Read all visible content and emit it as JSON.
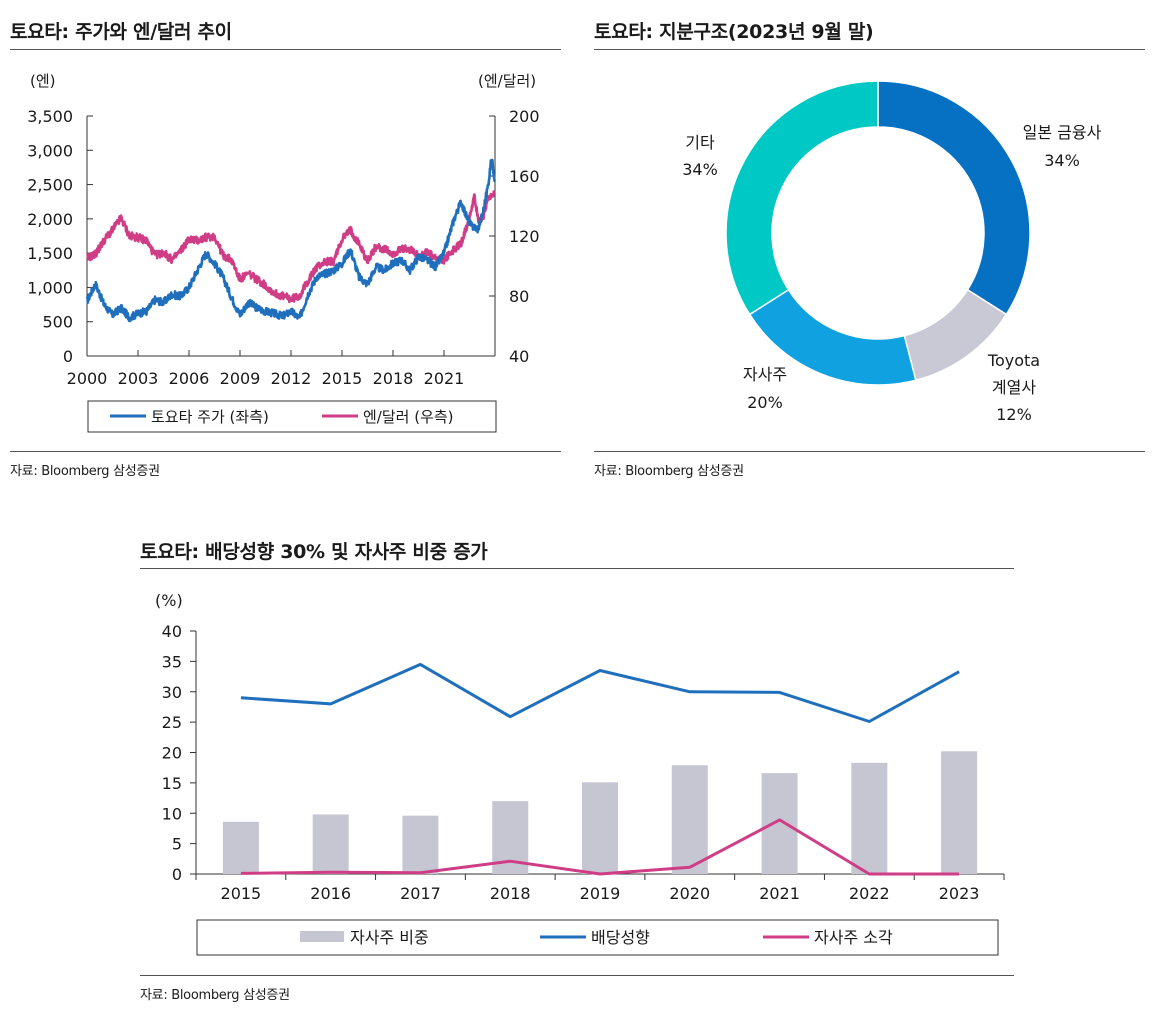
{
  "stock_fx": {
    "title": "토요타: 주가와 엔/달러 추이",
    "source": "자료: Bloomberg 삼성증권",
    "left_unit": "(엔)",
    "right_unit": "(엔/달러)",
    "legend": [
      "토요타 주가 (좌측)",
      "엔/달러 (우측)"
    ]
  },
  "ownership": {
    "title": "토요타: 지분구조(2023년 9월 말)",
    "source": "자료: Bloomberg 삼성증권",
    "labels": {
      "japan_fin": [
        "일본 금융사",
        "34%"
      ],
      "toyota_aff": [
        "Toyota",
        "계열사",
        "12%"
      ],
      "treasury": [
        "자사주",
        "20%"
      ],
      "other": [
        "기타",
        "34%"
      ]
    }
  },
  "payout": {
    "title": "토요타: 배당성향 30% 및 자사주 비중 증가",
    "source": "자료: Bloomberg 삼성증권",
    "unit": "(%)",
    "legend": [
      "자사주 비중",
      "배당성향",
      "자사주 소각"
    ]
  },
  "chart_data": [
    {
      "type": "line",
      "title": "토요타: 주가와 엔/달러 추이",
      "x_ticks": [
        "2000",
        "2003",
        "2006",
        "2009",
        "2012",
        "2015",
        "2018",
        "2021"
      ],
      "y_left": {
        "label": "(엔)",
        "range": [
          0,
          3500
        ],
        "ticks": [
          0,
          500,
          1000,
          1500,
          2000,
          2500,
          3000,
          3500
        ]
      },
      "y_right": {
        "label": "(엔/달러)",
        "range": [
          40,
          200
        ],
        "ticks": [
          40,
          80,
          120,
          160,
          200
        ]
      },
      "colors": {
        "stock": "#1f6fbd",
        "fx": "#cf3d86"
      },
      "series": [
        {
          "name": "토요타 주가 (좌측)",
          "axis": "left",
          "x": [
            2000.0,
            2000.5,
            2001.0,
            2001.5,
            2002.0,
            2002.5,
            2003.0,
            2003.5,
            2004.0,
            2004.5,
            2005.0,
            2005.5,
            2006.0,
            2006.5,
            2007.0,
            2007.5,
            2008.0,
            2008.5,
            2009.0,
            2009.5,
            2010.0,
            2010.5,
            2011.0,
            2011.5,
            2012.0,
            2012.5,
            2013.0,
            2013.5,
            2014.0,
            2014.5,
            2015.0,
            2015.5,
            2016.0,
            2016.5,
            2017.0,
            2017.5,
            2018.0,
            2018.5,
            2019.0,
            2019.5,
            2020.0,
            2020.5,
            2021.0,
            2021.3,
            2021.6,
            2022.0,
            2022.3,
            2022.6,
            2023.0,
            2023.3,
            2023.6,
            2023.8,
            2024.0
          ],
          "values": [
            800,
            1050,
            750,
            600,
            700,
            560,
            620,
            650,
            820,
            780,
            900,
            870,
            1000,
            1250,
            1500,
            1350,
            1150,
            850,
            600,
            780,
            700,
            650,
            620,
            580,
            650,
            550,
            900,
            1150,
            1200,
            1250,
            1350,
            1550,
            1150,
            1050,
            1300,
            1250,
            1350,
            1400,
            1250,
            1450,
            1400,
            1300,
            1500,
            1750,
            2000,
            2250,
            2050,
            1900,
            1850,
            2100,
            2500,
            2900,
            2550
          ]
        },
        {
          "name": "엔/달러 (우측)",
          "axis": "right",
          "x": [
            2000.0,
            2000.5,
            2001.0,
            2001.5,
            2002.0,
            2002.5,
            2003.0,
            2003.5,
            2004.0,
            2004.5,
            2005.0,
            2005.5,
            2006.0,
            2006.5,
            2007.0,
            2007.5,
            2008.0,
            2008.5,
            2009.0,
            2009.5,
            2010.0,
            2010.5,
            2011.0,
            2011.5,
            2012.0,
            2012.5,
            2013.0,
            2013.5,
            2014.0,
            2014.5,
            2015.0,
            2015.5,
            2016.0,
            2016.5,
            2017.0,
            2017.5,
            2018.0,
            2018.5,
            2019.0,
            2019.5,
            2020.0,
            2020.5,
            2021.0,
            2021.5,
            2022.0,
            2022.3,
            2022.6,
            2022.8,
            2023.0,
            2023.3,
            2023.6,
            2024.0
          ],
          "values": [
            105,
            108,
            117,
            124,
            132,
            120,
            119,
            117,
            107,
            109,
            104,
            110,
            118,
            117,
            119,
            120,
            107,
            104,
            91,
            95,
            91,
            87,
            82,
            80,
            78,
            80,
            90,
            99,
            103,
            103,
            118,
            124,
            115,
            103,
            113,
            111,
            108,
            111,
            111,
            107,
            109,
            105,
            104,
            110,
            115,
            125,
            138,
            148,
            130,
            133,
            145,
            148
          ]
        }
      ]
    },
    {
      "type": "pie",
      "title": "토요타: 지분구조(2023년 9월 말)",
      "categories": [
        "일본 금융사",
        "Toyota 계열사",
        "자사주",
        "기타"
      ],
      "values": [
        34,
        12,
        20,
        34
      ],
      "colors": [
        "#0670c3",
        "#c8c9d4",
        "#0fa1e0",
        "#00c8c4"
      ],
      "donut": true
    },
    {
      "type": "bar",
      "title": "토요타: 배당성향 30% 및 자사주 비중 증가",
      "ylabel": "(%)",
      "ylim": [
        0,
        40
      ],
      "yticks": [
        0,
        5,
        10,
        15,
        20,
        25,
        30,
        35,
        40
      ],
      "categories": [
        "2015",
        "2016",
        "2017",
        "2018",
        "2019",
        "2020",
        "2021",
        "2022",
        "2023"
      ],
      "series": [
        {
          "name": "자사주 비중",
          "kind": "bar",
          "color": "#c5c6d2",
          "values": [
            8.6,
            9.8,
            9.6,
            12.0,
            15.1,
            17.9,
            16.6,
            18.3,
            20.2
          ]
        },
        {
          "name": "배당성향",
          "kind": "line",
          "color": "#1f6fbd",
          "values": [
            29.0,
            28.0,
            34.5,
            25.9,
            33.5,
            30.0,
            29.9,
            25.1,
            33.3
          ]
        },
        {
          "name": "자사주 소각",
          "kind": "line",
          "color": "#cf3d86",
          "values": [
            0.1,
            0.3,
            0.2,
            2.1,
            0.0,
            1.1,
            8.9,
            0.0,
            0.0
          ]
        }
      ]
    }
  ]
}
